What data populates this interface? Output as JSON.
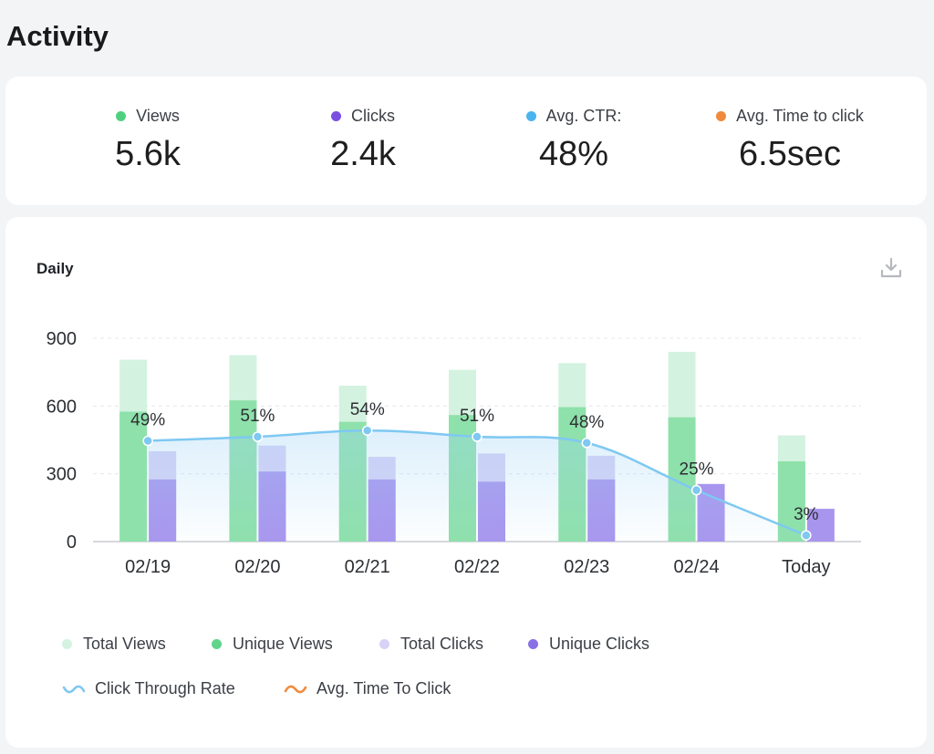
{
  "page": {
    "title": "Activity"
  },
  "stats": [
    {
      "label": "Views",
      "value": "5.6k",
      "color": "#4fd07f"
    },
    {
      "label": "Clicks",
      "value": "2.4k",
      "color": "#7b4fe0"
    },
    {
      "label": "Avg. CTR:",
      "value": "48%",
      "color": "#4ab4ee"
    },
    {
      "label": "Avg. Time to click",
      "value": "6.5sec",
      "color": "#f08a3c"
    }
  ],
  "chart": {
    "title": "Daily",
    "download_icon": "download-icon"
  },
  "legend": {
    "total_views": "Total Views",
    "unique_views": "Unique Views",
    "total_clicks": "Total Clicks",
    "unique_clicks": "Unique Clicks",
    "ctr": "Click Through Rate",
    "avg_time": "Avg. Time To Click"
  },
  "colors": {
    "total_views": "#d3f2df",
    "unique_views": "#8ee1aa",
    "total_clicks": "#d7d2f7",
    "unique_clicks": "#a895ee",
    "ctr_line": "#7ec8f2",
    "avg_time_line": "#f08a3c"
  },
  "chart_data": {
    "type": "bar",
    "title": "Daily",
    "categories": [
      "02/19",
      "02/20",
      "02/21",
      "02/22",
      "02/23",
      "02/24",
      "Today"
    ],
    "y_ticks": [
      0,
      300,
      600,
      900
    ],
    "ylim": [
      0,
      900
    ],
    "grid": true,
    "legend_position": "bottom",
    "series": [
      {
        "name": "Total Views",
        "values": [
          805,
          825,
          690,
          760,
          790,
          840,
          470
        ]
      },
      {
        "name": "Unique Views",
        "values": [
          575,
          625,
          530,
          560,
          595,
          550,
          355
        ]
      },
      {
        "name": "Total Clicks",
        "values": [
          400,
          425,
          375,
          390,
          380,
          0,
          0
        ]
      },
      {
        "name": "Unique Clicks",
        "values": [
          275,
          310,
          275,
          265,
          275,
          255,
          145
        ]
      },
      {
        "name": "Click Through Rate",
        "values": [
          49,
          51,
          54,
          51,
          48,
          25,
          3
        ],
        "labels": [
          "49%",
          "51%",
          "54%",
          "51%",
          "48%",
          "25%",
          "3%"
        ]
      }
    ]
  }
}
